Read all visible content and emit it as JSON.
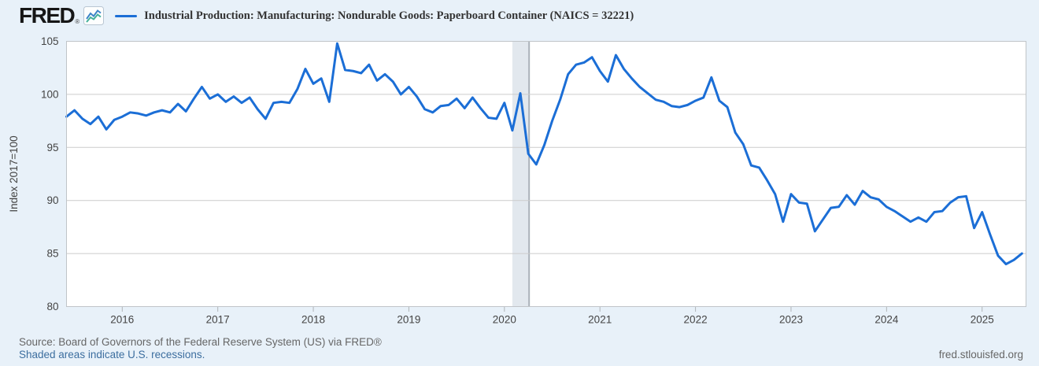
{
  "header": {
    "logo_text": "FRED",
    "registered_mark": "®",
    "logo_icon": "line-chart-icon"
  },
  "chart_data": {
    "type": "line",
    "title": "Industrial Production: Manufacturing: Nondurable Goods: Paperboard Container (NAICS = 32221)",
    "ylabel": "Index 2017=100",
    "ylim": [
      80,
      105
    ],
    "yticks": [
      80,
      85,
      90,
      95,
      100,
      105
    ],
    "xticks": [
      "2016",
      "2017",
      "2018",
      "2019",
      "2020",
      "2021",
      "2022",
      "2023",
      "2024",
      "2025"
    ],
    "frequency": "monthly",
    "x_start": "2015-06",
    "x_end": "2025-06",
    "grid": "horizontal",
    "legend_position": "top-left",
    "recession_bands": [
      {
        "start": "2020-02",
        "end": "2020-04"
      }
    ],
    "series": [
      {
        "name": "Industrial Production: Manufacturing: Nondurable Goods: Paperboard Container (NAICS = 32221)",
        "values": [
          97.9,
          98.5,
          97.7,
          97.2,
          97.9,
          96.7,
          97.6,
          97.9,
          98.3,
          98.2,
          98.0,
          98.3,
          98.5,
          98.3,
          99.1,
          98.4,
          99.6,
          100.7,
          99.6,
          100.0,
          99.3,
          99.8,
          99.2,
          99.7,
          98.6,
          97.7,
          99.2,
          99.3,
          99.2,
          100.5,
          102.4,
          101.0,
          101.5,
          99.3,
          104.8,
          102.3,
          102.2,
          102.0,
          102.8,
          101.3,
          101.9,
          101.2,
          100.0,
          100.7,
          99.8,
          98.6,
          98.3,
          98.9,
          99.0,
          99.6,
          98.7,
          99.7,
          98.7,
          97.8,
          97.7,
          99.2,
          96.6,
          100.1,
          94.4,
          93.4,
          95.2,
          97.5,
          99.5,
          101.9,
          102.8,
          103.0,
          103.5,
          102.2,
          101.2,
          103.7,
          102.4,
          101.5,
          100.7,
          100.1,
          99.5,
          99.3,
          98.9,
          98.8,
          99.0,
          99.4,
          99.7,
          101.6,
          99.4,
          98.8,
          96.4,
          95.3,
          93.3,
          93.1,
          91.9,
          90.6,
          88.0,
          90.6,
          89.8,
          89.7,
          87.1,
          88.2,
          89.3,
          89.4,
          90.5,
          89.6,
          90.9,
          90.3,
          90.1,
          89.4,
          89.0,
          88.5,
          88.0,
          88.4,
          88.0,
          88.9,
          89.0,
          89.8,
          90.3,
          90.4,
          87.4,
          88.9,
          86.8,
          84.8,
          84.0,
          84.4,
          85.0
        ]
      }
    ]
  },
  "colors": {
    "background": "#e8f1f9",
    "plot_background": "#ffffff",
    "line": "#1b6ed6",
    "gridline": "#cccccc",
    "plot_border": "#c0c4c8",
    "recession_band": "#e2e8ee",
    "recession_band_edge": "#a9b1b9",
    "tick_label": "#444444",
    "axis_title": "#444444"
  },
  "footer": {
    "source_line": "Source: Board of Governors of the Federal Reserve System (US) via FRED®",
    "recession_note": "Shaded areas indicate U.S. recessions.",
    "site_link": "fred.stlouisfed.org"
  }
}
